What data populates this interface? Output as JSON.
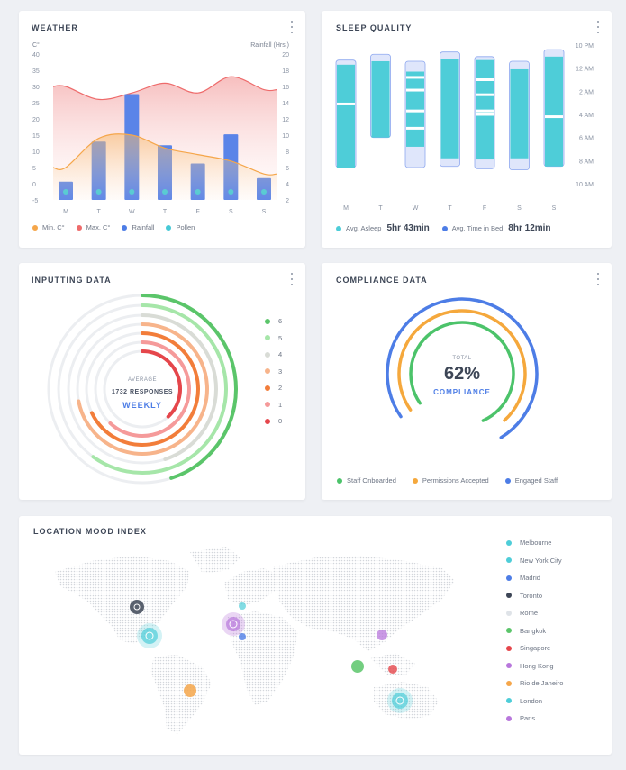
{
  "weather": {
    "title": "WEATHER",
    "left_unit": "C°",
    "right_unit": "Rainfall (Hrs.)",
    "left_ticks": [
      "40",
      "35",
      "30",
      "25",
      "20",
      "15",
      "10",
      "5",
      "0",
      "-5"
    ],
    "right_ticks": [
      "20",
      "18",
      "16",
      "14",
      "12",
      "10",
      "8",
      "6",
      "4",
      "2"
    ],
    "days": [
      "M",
      "T",
      "W",
      "T",
      "F",
      "S",
      "S"
    ],
    "legend": [
      {
        "label": "Min. C°",
        "color": "#f5a64a"
      },
      {
        "label": "Max. C°",
        "color": "#ee6b6b"
      },
      {
        "label": "Rainfall",
        "color": "#4d7de6"
      },
      {
        "label": "Pollen",
        "color": "#46c9d6"
      }
    ],
    "chart_data": {
      "type": "bar",
      "categories": [
        "M",
        "T",
        "W",
        "T",
        "F",
        "S",
        "S"
      ],
      "series": [
        {
          "name": "Rainfall",
          "values": [
            2.5,
            8,
            14.5,
            7.5,
            5,
            9,
            3
          ]
        },
        {
          "name": "Min. C°",
          "values": [
            5,
            14,
            15,
            11,
            9,
            7,
            3
          ]
        },
        {
          "name": "Max. C°",
          "values": [
            30,
            26,
            28,
            31,
            28,
            33,
            29
          ]
        }
      ],
      "ylim_left": [
        -5,
        40
      ],
      "ylim_right": [
        0,
        20
      ]
    }
  },
  "sleep": {
    "title": "SLEEP QUALITY",
    "time_ticks": [
      "10 PM",
      "12 AM",
      "2 AM",
      "4 AM",
      "6 AM",
      "8 AM",
      "10 AM"
    ],
    "days": [
      "M",
      "T",
      "W",
      "T",
      "F",
      "S",
      "S"
    ],
    "avg_asleep_label": "Avg. Asleep",
    "avg_asleep_value": "5hr 43min",
    "avg_bed_label": "Avg. Time in Bed",
    "avg_bed_value": "8hr 12min",
    "colors": {
      "asleep": "#4ecdd8",
      "bed": "#dfe6fb",
      "bed_border": "#8ea8ef"
    },
    "chart_data": {
      "type": "bar",
      "categories": [
        "M",
        "T",
        "W",
        "T",
        "F",
        "S",
        "S"
      ],
      "bed": [
        [
          23.3,
          32.6
        ],
        [
          22.8,
          30
        ],
        [
          23.4,
          32.6
        ],
        [
          22.6,
          32.5
        ],
        [
          23.0,
          32.7
        ],
        [
          23.4,
          32.8
        ],
        [
          22.4,
          32.5
        ]
      ],
      "asleep": [
        [
          23.7,
          32.6
        ],
        [
          23.4,
          30
        ],
        [
          24.3,
          30.8
        ],
        [
          23.2,
          31.8
        ],
        [
          23.3,
          31.9
        ],
        [
          24.1,
          31.8
        ],
        [
          23.0,
          32.5
        ]
      ],
      "wake": [
        [
          27.1
        ],
        [],
        [
          24.8,
          25.9,
          27.7,
          29.2
        ],
        [],
        [
          25.0,
          26.3,
          27.7,
          28.0
        ],
        [],
        [
          28.2
        ]
      ]
    }
  },
  "inputting": {
    "title": "INPUTTING DATA",
    "center_top": "AVERAGE",
    "center_mid": "1732 RESPONSES",
    "center_bottom": "WEEKLY",
    "legend": [
      {
        "label": "6",
        "color": "#5bc56a"
      },
      {
        "label": "5",
        "color": "#a6e6a9"
      },
      {
        "label": "4",
        "color": "#d9dcd6"
      },
      {
        "label": "3",
        "color": "#f7b48b"
      },
      {
        "label": "2",
        "color": "#f27d3a"
      },
      {
        "label": "1",
        "color": "#f59a9a"
      },
      {
        "label": "0",
        "color": "#e5464b"
      }
    ],
    "chart_data": {
      "type": "radial",
      "categories": [
        "6",
        "5",
        "4",
        "3",
        "2",
        "1",
        "0"
      ],
      "values": [
        0.45,
        0.6,
        0.45,
        0.72,
        0.68,
        0.62,
        0.38
      ]
    }
  },
  "compliance": {
    "title": "COMPLIANCE DATA",
    "center_top": "TOTAL",
    "center_value": "62%",
    "center_bottom": "COMPLIANCE",
    "legend": [
      {
        "label": "Staff Onboarded",
        "color": "#4cc36a"
      },
      {
        "label": "Permissions Accepted",
        "color": "#f5a83c"
      },
      {
        "label": "Engaged Staff",
        "color": "#4d7de6"
      }
    ],
    "chart_data": {
      "type": "radial",
      "categories": [
        "Staff Onboarded",
        "Permissions Accepted",
        "Engaged Staff"
      ],
      "values": [
        0.78,
        0.73,
        0.76
      ]
    }
  },
  "mood": {
    "title": "LOCATION MOOD INDEX",
    "legend": [
      {
        "label": "Melbourne",
        "color": "#4ecdd8"
      },
      {
        "label": "New York City",
        "color": "#4ecdd8"
      },
      {
        "label": "Madrid",
        "color": "#4d7de6"
      },
      {
        "label": "Toronto",
        "color": "#3d4656"
      },
      {
        "label": "Rome",
        "color": "#dfe3e8"
      },
      {
        "label": "Bangkok",
        "color": "#5bc56a"
      },
      {
        "label": "Singapore",
        "color": "#e5464b"
      },
      {
        "label": "Hong Kong",
        "color": "#b877dc"
      },
      {
        "label": "Rio de Janeiro",
        "color": "#f5a64a"
      },
      {
        "label": "London",
        "color": "#4ecdd8"
      },
      {
        "label": "Paris",
        "color": "#b877dc"
      }
    ]
  }
}
